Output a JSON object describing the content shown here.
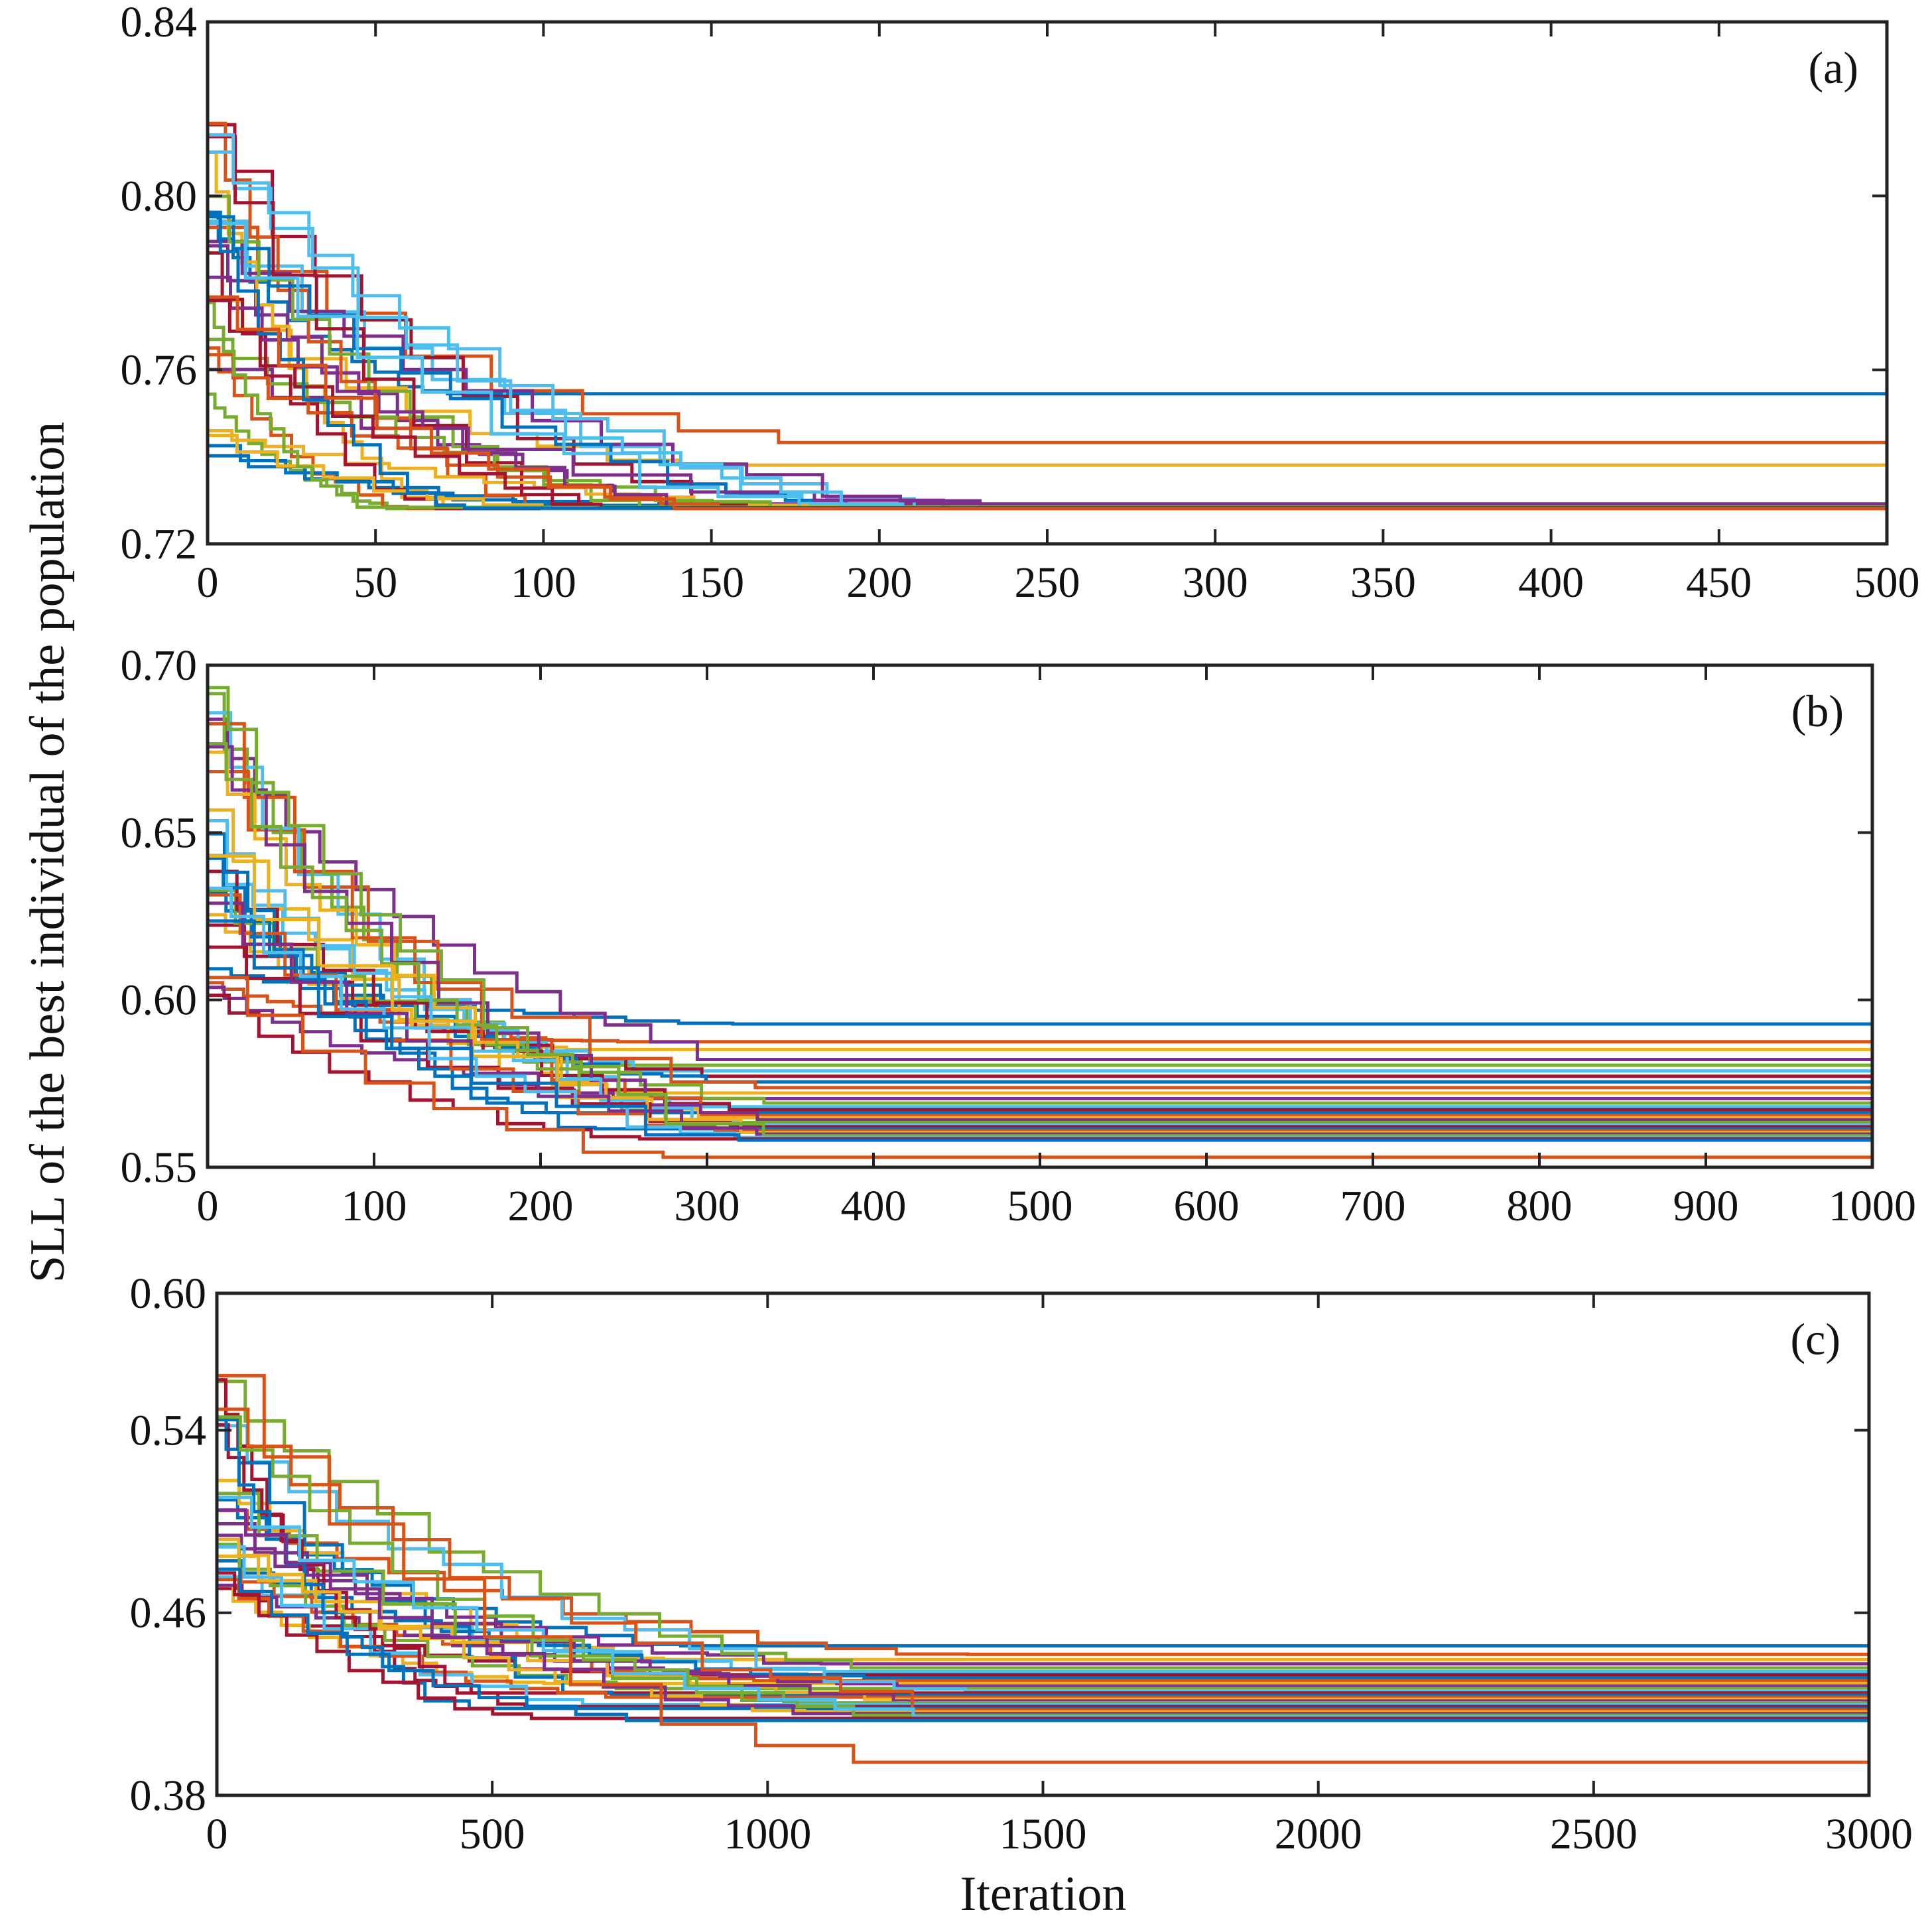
{
  "ylabel": "SLL of the best individual of the population",
  "xlabel": "Iteration",
  "chart_data": [
    {
      "type": "line",
      "panel_label": "(a)",
      "xlim": [
        0,
        500
      ],
      "ylim": [
        0.72,
        0.84
      ],
      "xticks": [
        0,
        50,
        100,
        150,
        200,
        250,
        300,
        350,
        400,
        450,
        500
      ],
      "yticks": [
        0.72,
        0.76,
        0.8,
        0.84
      ],
      "xtick_labels": [
        "0",
        "50",
        "100",
        "150",
        "200",
        "250",
        "300",
        "350",
        "400",
        "450",
        "500"
      ],
      "ytick_labels": [
        "0.72",
        "0.76",
        "0.80",
        "0.84"
      ],
      "run_count": 30,
      "final_values": [
        0.7545,
        0.7433,
        0.7381,
        0.7292,
        0.7281,
        0.7283,
        0.7282,
        0.7281,
        0.7283,
        0.7282,
        0.7284,
        0.7281,
        0.7282,
        0.7283,
        0.7281,
        0.7282,
        0.7284,
        0.7281,
        0.7282,
        0.7283,
        0.7281,
        0.7282,
        0.7283,
        0.7281,
        0.7282,
        0.7284,
        0.7281,
        0.7283,
        0.7282,
        0.7281
      ],
      "start_range": [
        0.74,
        0.818
      ],
      "converge_range": [
        30,
        230
      ]
    },
    {
      "type": "line",
      "panel_label": "(b)",
      "xlim": [
        0,
        1000
      ],
      "ylim": [
        0.55,
        0.7
      ],
      "xticks": [
        0,
        100,
        200,
        300,
        400,
        500,
        600,
        700,
        800,
        900,
        1000
      ],
      "yticks": [
        0.55,
        0.6,
        0.65,
        0.7
      ],
      "xtick_labels": [
        "0",
        "100",
        "200",
        "300",
        "400",
        "500",
        "600",
        "700",
        "800",
        "900",
        "1000"
      ],
      "ytick_labels": [
        "0.55",
        "0.60",
        "0.65",
        "0.70"
      ],
      "run_count": 30,
      "final_values": [
        0.5928,
        0.5875,
        0.5852,
        0.5822,
        0.5805,
        0.5788,
        0.5772,
        0.5755,
        0.5738,
        0.5722,
        0.5705,
        0.5692,
        0.5681,
        0.5672,
        0.5663,
        0.5655,
        0.5648,
        0.5641,
        0.5634,
        0.5627,
        0.5621,
        0.5615,
        0.5609,
        0.5604,
        0.5599,
        0.5594,
        0.5589,
        0.5585,
        0.5581,
        0.553
      ],
      "start_range": [
        0.6,
        0.7
      ],
      "converge_range": [
        200,
        340
      ]
    },
    {
      "type": "line",
      "panel_label": "(c)",
      "xlim": [
        0,
        3000
      ],
      "ylim": [
        0.38,
        0.6
      ],
      "xticks": [
        0,
        500,
        1000,
        1500,
        2000,
        2500,
        3000
      ],
      "yticks": [
        0.38,
        0.46,
        0.54,
        0.6
      ],
      "xtick_labels": [
        "0",
        "500",
        "1000",
        "1500",
        "2000",
        "2500",
        "3000"
      ],
      "ytick_labels": [
        "0.38",
        "0.46",
        "0.54",
        "0.60"
      ],
      "run_count": 30,
      "final_values": [
        0.4455,
        0.4418,
        0.4395,
        0.4376,
        0.4358,
        0.4342,
        0.4328,
        0.4315,
        0.4302,
        0.429,
        0.4279,
        0.4268,
        0.4258,
        0.4248,
        0.4239,
        0.423,
        0.4221,
        0.4213,
        0.4205,
        0.4197,
        0.4189,
        0.4181,
        0.4174,
        0.4166,
        0.4158,
        0.4151,
        0.4144,
        0.4137,
        0.4128,
        0.3945
      ],
      "start_range": [
        0.46,
        0.565
      ],
      "converge_range": [
        400,
        1400
      ]
    }
  ],
  "colors": [
    "#0072BD",
    "#D95319",
    "#EDB120",
    "#7E2F8E",
    "#77AC30",
    "#4DBEEE",
    "#A2142F"
  ]
}
